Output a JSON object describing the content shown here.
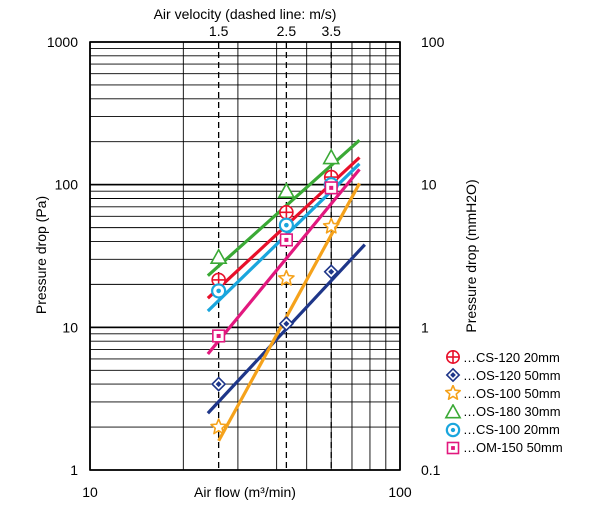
{
  "chart_data": {
    "type": "line",
    "title": "Air velocity (dashed line: m/s)",
    "xlabel": "Air flow (m³/min)",
    "ylabel": "Pressure drop (Pa)",
    "ylabel_right": "Pressure drop (mmH2O)",
    "xscale": "log",
    "yscale": "log",
    "xlim": [
      10,
      100
    ],
    "ylim": [
      1,
      1000
    ],
    "x_tick_labels": [
      "10",
      "100"
    ],
    "y_tick_labels": [
      "1",
      "10",
      "100",
      "1000"
    ],
    "y_right_tick_labels": [
      "0.1",
      "1",
      "10",
      "100"
    ],
    "grid": true,
    "velocity_markers": [
      {
        "label": "1.5",
        "air_flow": 26
      },
      {
        "label": "2.5",
        "air_flow": 43
      },
      {
        "label": "3.5",
        "air_flow": 60
      }
    ],
    "series": [
      {
        "name": "CS-120 20mm",
        "legend": "…CS-120 20mm",
        "color": "#e8102a",
        "marker": "circle-plus",
        "line_x": [
          24,
          74
        ],
        "line_y": [
          16,
          155
        ],
        "points_x": [
          26,
          43,
          60
        ],
        "points_y": [
          21.5,
          64,
          113
        ]
      },
      {
        "name": "OS-120 50mm",
        "legend": "…OS-120 50mm",
        "color": "#1e3689",
        "marker": "diamond",
        "line_x": [
          24,
          77
        ],
        "line_y": [
          2.5,
          38
        ],
        "points_x": [
          26,
          43,
          60
        ],
        "points_y": [
          4,
          10.6,
          24.5
        ]
      },
      {
        "name": "OS-100 50mm",
        "legend": "…OS-100 50mm",
        "color": "#f5a21b",
        "marker": "star",
        "line_x": [
          26,
          74
        ],
        "line_y": [
          1.6,
          102
        ],
        "points_x": [
          26,
          43,
          60
        ],
        "points_y": [
          2,
          22,
          51
        ]
      },
      {
        "name": "OS-180 30mm",
        "legend": "…OS-180 30mm",
        "color": "#3aa935",
        "marker": "triangle",
        "line_x": [
          24,
          74
        ],
        "line_y": [
          23,
          205
        ],
        "points_x": [
          26,
          43,
          60
        ],
        "points_y": [
          31,
          90,
          155
        ]
      },
      {
        "name": "CS-100 20mm",
        "legend": "…CS-100 20mm",
        "color": "#1aa6dd",
        "marker": "circle-dot",
        "line_x": [
          24,
          74
        ],
        "line_y": [
          13,
          140
        ],
        "points_x": [
          26,
          43,
          60
        ],
        "points_y": [
          18,
          52,
          100
        ]
      },
      {
        "name": "OM-150 50mm",
        "legend": "…OM-150 50mm",
        "color": "#e2187e",
        "marker": "square-dot",
        "line_x": [
          24,
          74
        ],
        "line_y": [
          6.5,
          128
        ],
        "points_x": [
          26,
          43,
          60
        ],
        "points_y": [
          8.7,
          41,
          95
        ]
      }
    ]
  }
}
